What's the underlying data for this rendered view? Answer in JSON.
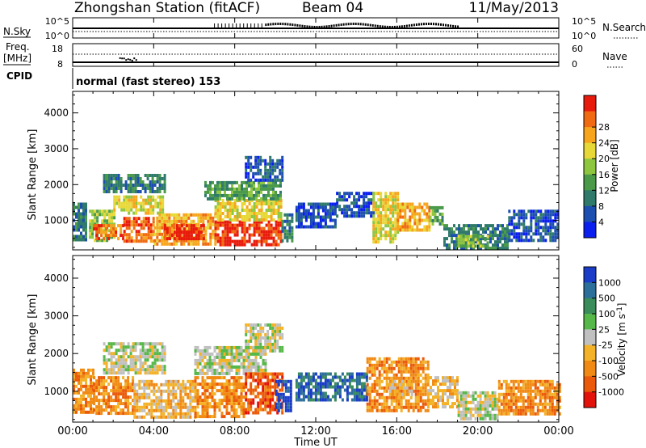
{
  "header": {
    "station": "Zhongshan Station (fitACF)",
    "beam": "Beam 04",
    "date": "11/May/2013"
  },
  "noise_panel": {
    "left_label": "N.Sky",
    "left_ticks": [
      "10^5",
      "10^0"
    ],
    "right_ticks": [
      "10^5",
      "10^0"
    ],
    "right_label": "N.Search"
  },
  "freq_panel": {
    "label_line1": "Freq.",
    "label_line2": "[MHz]",
    "left_ticks": [
      "18",
      "8"
    ],
    "right_ticks": [
      "60",
      "0"
    ],
    "right_label": "Nave"
  },
  "cpid_panel": {
    "label": "CPID",
    "text": "normal (fast stereo) 153"
  },
  "chart_data": [
    {
      "type": "heatmap",
      "name": "power",
      "ylabel": "Slant Range [km]",
      "yticks": [
        1000,
        2000,
        3000,
        4000
      ],
      "ylim": [
        180,
        4600
      ],
      "xlim": [
        0,
        24
      ],
      "colorbar": {
        "label": "Power [dB]",
        "ticks": [
          "4",
          "8",
          "12",
          "16",
          "20",
          "24",
          "28"
        ],
        "colors": [
          "#0a1ef0",
          "#1d4fb0",
          "#2f7a6a",
          "#4a9a4a",
          "#8fc640",
          "#e7d838",
          "#f6a51c",
          "#ef6a10",
          "#e81a0c"
        ],
        "position": "right"
      },
      "series": [
        {
          "t0": 0.0,
          "t1": 0.7,
          "r0": 500,
          "r1": 1500,
          "level": 2
        },
        {
          "t0": 0.8,
          "t1": 2.0,
          "r0": 400,
          "r1": 1300,
          "level": 4
        },
        {
          "t0": 1.0,
          "t1": 2.5,
          "r0": 500,
          "r1": 900,
          "level": 7
        },
        {
          "t0": 2.5,
          "t1": 4.0,
          "r0": 400,
          "r1": 1100,
          "level": 7
        },
        {
          "t0": 2.0,
          "t1": 4.5,
          "r0": 1200,
          "r1": 1700,
          "level": 5
        },
        {
          "t0": 1.5,
          "t1": 4.5,
          "r0": 1800,
          "r1": 2300,
          "level": 2
        },
        {
          "t0": 4.0,
          "t1": 7.0,
          "r0": 350,
          "r1": 1200,
          "level": 6
        },
        {
          "t0": 4.5,
          "t1": 6.5,
          "r0": 500,
          "r1": 900,
          "level": 8
        },
        {
          "t0": 7.0,
          "t1": 10.3,
          "r0": 300,
          "r1": 1000,
          "level": 8
        },
        {
          "t0": 7.0,
          "t1": 10.3,
          "r0": 1000,
          "r1": 1600,
          "level": 5
        },
        {
          "t0": 6.5,
          "t1": 10.3,
          "r0": 1600,
          "r1": 2100,
          "level": 3
        },
        {
          "t0": 8.5,
          "t1": 10.3,
          "r0": 2100,
          "r1": 2800,
          "level": 1
        },
        {
          "t0": 10.3,
          "t1": 10.8,
          "r0": 400,
          "r1": 1200,
          "level": 2
        },
        {
          "t0": 11.0,
          "t1": 13.0,
          "r0": 800,
          "r1": 1500,
          "level": 1
        },
        {
          "t0": 13.0,
          "t1": 14.8,
          "r0": 1100,
          "r1": 1800,
          "level": 1
        },
        {
          "t0": 14.8,
          "t1": 16.0,
          "r0": 400,
          "r1": 1800,
          "level": 5
        },
        {
          "t0": 16.0,
          "t1": 17.6,
          "r0": 700,
          "r1": 1500,
          "level": 6
        },
        {
          "t0": 17.6,
          "t1": 18.3,
          "r0": 900,
          "r1": 1400,
          "level": 3
        },
        {
          "t0": 18.3,
          "t1": 21.5,
          "r0": 250,
          "r1": 900,
          "level": 2
        },
        {
          "t0": 19.0,
          "t1": 20.5,
          "r0": 300,
          "r1": 600,
          "level": 4
        },
        {
          "t0": 21.5,
          "t1": 24.0,
          "r0": 400,
          "r1": 1300,
          "level": 1
        }
      ]
    },
    {
      "type": "heatmap",
      "name": "velocity",
      "ylabel": "Slant Range [km]",
      "yticks": [
        1000,
        2000,
        3000,
        4000
      ],
      "ylim": [
        180,
        4600
      ],
      "xlim": [
        0,
        24
      ],
      "colorbar": {
        "label": "Velocity [m s^-1]",
        "ticks": [
          "1000",
          "500",
          "100",
          "25",
          "-25",
          "-100",
          "-500",
          "-1000"
        ],
        "colors": [
          "#1a3cc8",
          "#2c6f9a",
          "#3a8c5a",
          "#56b848",
          "#c0c0c0",
          "#f3b227",
          "#f08a14",
          "#ea5a0a",
          "#e3120b"
        ],
        "position": "right"
      },
      "series": [
        {
          "t0": 0.0,
          "t1": 1.0,
          "r0": 400,
          "r1": 1600,
          "level": 6
        },
        {
          "t0": 1.0,
          "t1": 3.0,
          "r0": 400,
          "r1": 1400,
          "level": 6
        },
        {
          "t0": 1.5,
          "t1": 4.5,
          "r0": 1500,
          "r1": 2300,
          "level": 4
        },
        {
          "t0": 3.0,
          "t1": 6.0,
          "r0": 350,
          "r1": 1300,
          "level": 5
        },
        {
          "t0": 6.0,
          "t1": 8.5,
          "r0": 350,
          "r1": 1400,
          "level": 6
        },
        {
          "t0": 6.0,
          "t1": 9.5,
          "r0": 1500,
          "r1": 2200,
          "level": 4
        },
        {
          "t0": 8.5,
          "t1": 10.3,
          "r0": 400,
          "r1": 1500,
          "level": 7
        },
        {
          "t0": 8.5,
          "t1": 10.3,
          "r0": 2100,
          "r1": 2800,
          "level": 4
        },
        {
          "t0": 10.0,
          "t1": 10.8,
          "r0": 500,
          "r1": 1300,
          "level": 0
        },
        {
          "t0": 11.0,
          "t1": 14.5,
          "r0": 800,
          "r1": 1500,
          "level": 1
        },
        {
          "t0": 14.5,
          "t1": 17.5,
          "r0": 500,
          "r1": 1900,
          "level": 6
        },
        {
          "t0": 15.5,
          "t1": 16.8,
          "r0": 900,
          "r1": 1300,
          "level": 5
        },
        {
          "t0": 17.5,
          "t1": 19.0,
          "r0": 600,
          "r1": 1400,
          "level": 5
        },
        {
          "t0": 19.0,
          "t1": 21.0,
          "r0": 300,
          "r1": 1000,
          "level": 4
        },
        {
          "t0": 21.0,
          "t1": 24.0,
          "r0": 400,
          "r1": 1300,
          "level": 6
        }
      ]
    }
  ],
  "xaxis": {
    "ticks": [
      "00:00",
      "04:00",
      "08:00",
      "12:00",
      "16:00",
      "20:00",
      "00:00"
    ],
    "label": "Time UT"
  }
}
